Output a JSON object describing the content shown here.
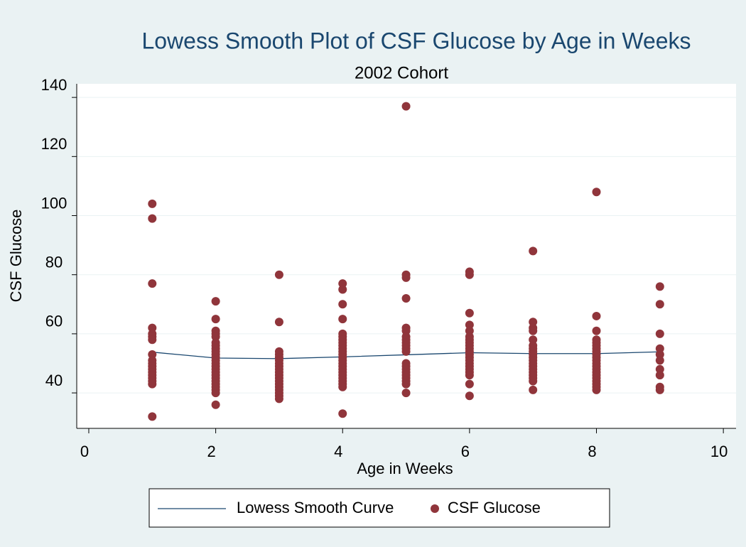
{
  "chart_data": {
    "type": "scatter",
    "title": "Lowess Smooth Plot of CSF Glucose by Age in Weeks",
    "subtitle": "2002 Cohort",
    "x_label": "Age in Weeks",
    "y_label": "CSF Glucose",
    "xlim": [
      -0.19,
      10.2
    ],
    "ylim": [
      28,
      144.6
    ],
    "xticks": [
      0,
      2,
      4,
      6,
      8,
      10
    ],
    "yticks": [
      40,
      60,
      80,
      100,
      120,
      140
    ],
    "grid": true,
    "legend": "bottom",
    "series": [
      {
        "name": "Lowess Smooth Curve",
        "type": "line",
        "color": "#1a476f",
        "x": [
          1,
          2,
          3,
          4,
          5,
          6,
          7,
          8,
          9
        ],
        "values": [
          53.8,
          51.8,
          51.6,
          52.2,
          52.9,
          53.6,
          53.3,
          53.3,
          53.9
        ]
      },
      {
        "name": "CSF Glucose",
        "type": "scatter",
        "color": "#90353b",
        "x": [
          1,
          1,
          1,
          1,
          1,
          1,
          1,
          1,
          1,
          1,
          1,
          1,
          1,
          1,
          1,
          1,
          1,
          1,
          2,
          2,
          2,
          2,
          2,
          2,
          2,
          2,
          2,
          2,
          2,
          2,
          2,
          2,
          2,
          2,
          2,
          2,
          2,
          2,
          2,
          2,
          2,
          2,
          3,
          3,
          3,
          3,
          3,
          3,
          3,
          3,
          3,
          3,
          3,
          3,
          3,
          3,
          3,
          3,
          3,
          3,
          3,
          4,
          4,
          4,
          4,
          4,
          4,
          4,
          4,
          4,
          4,
          4,
          4,
          4,
          4,
          4,
          4,
          4,
          4,
          4,
          4,
          4,
          4,
          4,
          4,
          5,
          5,
          5,
          5,
          5,
          5,
          5,
          5,
          5,
          5,
          5,
          5,
          5,
          5,
          5,
          5,
          5,
          5,
          5,
          5,
          5,
          6,
          6,
          6,
          6,
          6,
          6,
          6,
          6,
          6,
          6,
          6,
          6,
          6,
          6,
          6,
          6,
          6,
          6,
          6,
          6,
          6,
          7,
          7,
          7,
          7,
          7,
          7,
          7,
          7,
          7,
          7,
          7,
          7,
          7,
          7,
          7,
          7,
          7,
          7,
          7,
          8,
          8,
          8,
          8,
          8,
          8,
          8,
          8,
          8,
          8,
          8,
          8,
          8,
          8,
          8,
          8,
          8,
          8,
          8,
          8,
          8,
          9,
          9,
          9,
          9,
          9,
          9,
          9,
          9,
          9,
          9
        ],
        "values": [
          104,
          99,
          77,
          62,
          60,
          59,
          58,
          53,
          51,
          50,
          49,
          48,
          47,
          46,
          45,
          44,
          43,
          32,
          71,
          65,
          61,
          60,
          59,
          57,
          56,
          55,
          54,
          53,
          52,
          51,
          50,
          49,
          48,
          47,
          46,
          45,
          44,
          43,
          42,
          41,
          40,
          36,
          80,
          64,
          54,
          53,
          52,
          51,
          50,
          49,
          48,
          47,
          46,
          45,
          44,
          43,
          42,
          41,
          40,
          39,
          38,
          77,
          75,
          70,
          65,
          60,
          59,
          58,
          57,
          56,
          55,
          54,
          53,
          52,
          51,
          50,
          49,
          48,
          47,
          46,
          45,
          44,
          43,
          42,
          33,
          137,
          80,
          79,
          72,
          62,
          61,
          59,
          58,
          57,
          56,
          55,
          54,
          50,
          49,
          48,
          47,
          46,
          45,
          44,
          43,
          40,
          81,
          80,
          67,
          63,
          61,
          59,
          58,
          57,
          56,
          55,
          54,
          53,
          52,
          51,
          50,
          49,
          48,
          47,
          46,
          43,
          39,
          88,
          64,
          62,
          61,
          58,
          56,
          55,
          54,
          53,
          52,
          51,
          50,
          49,
          48,
          47,
          46,
          45,
          44,
          41,
          108,
          66,
          61,
          58,
          57,
          56,
          55,
          54,
          53,
          52,
          51,
          50,
          49,
          48,
          47,
          46,
          45,
          44,
          43,
          42,
          41,
          76,
          70,
          60,
          55,
          53,
          51,
          48,
          46,
          42,
          41
        ]
      }
    ]
  }
}
